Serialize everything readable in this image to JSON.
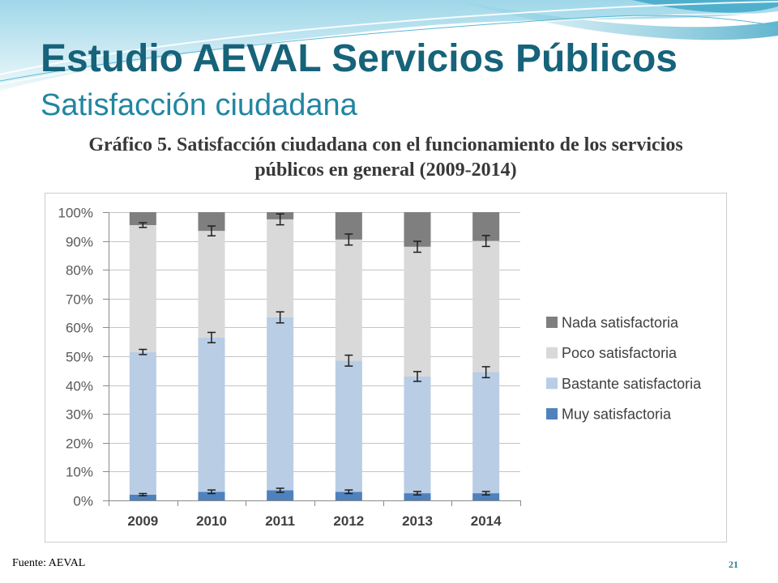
{
  "slide": {
    "title": "Estudio AEVAL Servicios Públicos",
    "subtitle": "Satisfacción ciudadana",
    "source": "Fuente: AEVAL",
    "page_number": "21",
    "colors": {
      "title": "#16637a",
      "subtitle": "#2186a2",
      "accent_wave": "#3aa5c6"
    }
  },
  "chart_data": {
    "type": "bar",
    "stacked": true,
    "percent": true,
    "title": [
      "Gráfico 5. Satisfacción ciudadana con el funcionamiento de los servicios",
      "públicos en general (2009-2014)"
    ],
    "categories": [
      "2009",
      "2010",
      "2011",
      "2012",
      "2013",
      "2014"
    ],
    "series": [
      {
        "name": "Muy satisfactoria",
        "color": "#4f81bd",
        "values": [
          2,
          3,
          3.5,
          3,
          2.5,
          2.5
        ],
        "error": [
          0.4,
          0.6,
          0.7,
          0.6,
          0.6,
          0.6
        ]
      },
      {
        "name": "Bastante satisfactoria",
        "color": "#b9cde5",
        "values": [
          49.5,
          53.5,
          60,
          45.5,
          40.5,
          42
        ],
        "error": [
          0.9,
          1.8,
          1.9,
          1.9,
          1.7,
          1.9
        ]
      },
      {
        "name": "Poco satisfactoria",
        "color": "#d9d9d9",
        "values": [
          44,
          37,
          34,
          42,
          45,
          45.5
        ],
        "error": [
          0.8,
          1.7,
          1.9,
          1.9,
          1.9,
          1.9
        ]
      },
      {
        "name": "Nada satisfactoria",
        "color": "#7f7f7f",
        "values": [
          4.5,
          6.5,
          2.5,
          9.5,
          12,
          10
        ]
      }
    ],
    "ylim": [
      0,
      100
    ],
    "ytick_labels": [
      "0%",
      "10%",
      "20%",
      "30%",
      "40%",
      "50%",
      "60%",
      "70%",
      "80%",
      "90%",
      "100%"
    ],
    "grid": true,
    "legend": "right"
  }
}
